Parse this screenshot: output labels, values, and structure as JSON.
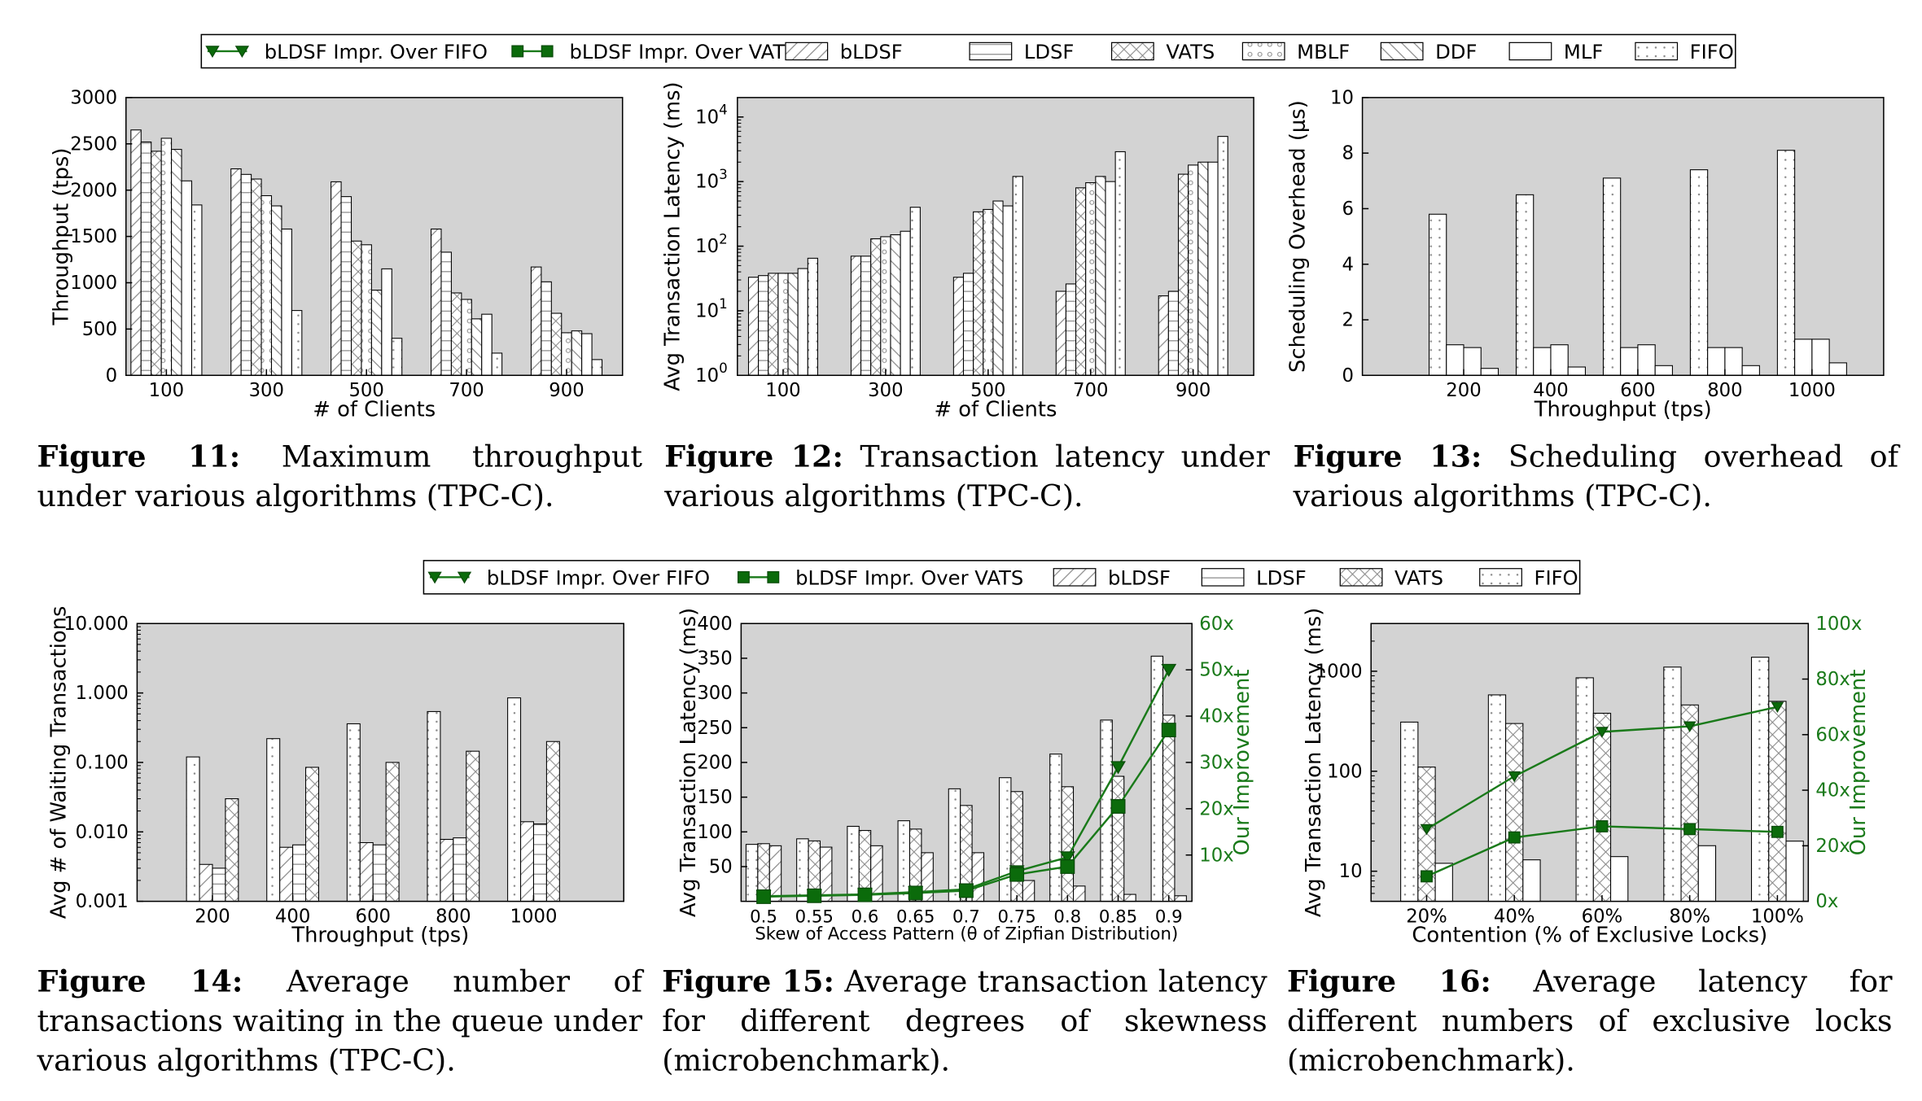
{
  "colors": {
    "plot_bg": "#d3d3d3",
    "bar_fill": "#ffffff",
    "line_green": "#1a7a1a",
    "marker_green": "#0b6b0b"
  },
  "legend_top": {
    "items": [
      {
        "label": "bLDSF Impr. Over FIFO",
        "kind": "line-triangle"
      },
      {
        "label": "bLDSF Impr. Over VATS",
        "kind": "line-square"
      },
      {
        "label": "bLDSF",
        "kind": "pattern-diag"
      },
      {
        "label": "LDSF",
        "kind": "pattern-hlines"
      },
      {
        "label": "VATS",
        "kind": "pattern-cross"
      },
      {
        "label": "MBLF",
        "kind": "pattern-circles"
      },
      {
        "label": "DDF",
        "kind": "pattern-backdiag"
      },
      {
        "label": "MLF",
        "kind": "pattern-none"
      },
      {
        "label": "FIFO",
        "kind": "pattern-dots"
      }
    ]
  },
  "legend_bottom": {
    "items": [
      {
        "label": "bLDSF Impr. Over FIFO",
        "kind": "line-triangle"
      },
      {
        "label": "bLDSF Impr. Over VATS",
        "kind": "line-square"
      },
      {
        "label": "bLDSF",
        "kind": "pattern-diag"
      },
      {
        "label": "LDSF",
        "kind": "pattern-hlines"
      },
      {
        "label": "VATS",
        "kind": "pattern-cross"
      },
      {
        "label": "FIFO",
        "kind": "pattern-dots"
      }
    ]
  },
  "captions": [
    {
      "label": "Figure 11:",
      "text": "Maximum throughput under various algorithms (TPC-C)."
    },
    {
      "label": "Figure 12:",
      "text": "Transaction latency under various algorithms (TPC-C)."
    },
    {
      "label": "Figure 13:",
      "text": "Scheduling overhead of various algorithms (TPC-C)."
    },
    {
      "label": "Figure 14:",
      "text": "Average number of transactions waiting in the queue under various algorithms (TPC-C)."
    },
    {
      "label": "Figure 15:",
      "text": "Average transaction latency for different degrees of skewness (microbenchmark)."
    },
    {
      "label": "Figure 16:",
      "text": "Average latency for different numbers of exclusive locks (microbenchmark)."
    }
  ],
  "chart_data": [
    {
      "type": "bar",
      "ylabel": "Throughput (tps)",
      "xlabel": "# of Clients",
      "categories": [
        "100",
        "300",
        "500",
        "700",
        "900"
      ],
      "yscale": "linear",
      "ylim": [
        0,
        3000
      ],
      "yticks": [
        0,
        500,
        1000,
        1500,
        2000,
        2500,
        3000
      ],
      "ytick_labels": [
        "0",
        "500",
        "1000",
        "1500",
        "2000",
        "2500",
        "3000"
      ],
      "series": [
        {
          "name": "bLDSF",
          "pattern": "diag",
          "values": [
            2650,
            2230,
            2090,
            1580,
            1170
          ]
        },
        {
          "name": "LDSF",
          "pattern": "hlines",
          "values": [
            2520,
            2170,
            1930,
            1330,
            1010
          ]
        },
        {
          "name": "VATS",
          "pattern": "cross",
          "values": [
            2420,
            2120,
            1450,
            890,
            670
          ]
        },
        {
          "name": "MBLF",
          "pattern": "circles",
          "values": [
            2560,
            1940,
            1410,
            820,
            460
          ]
        },
        {
          "name": "DDF",
          "pattern": "backdiag",
          "values": [
            2440,
            1830,
            920,
            610,
            480
          ]
        },
        {
          "name": "MLF",
          "pattern": "none",
          "values": [
            2100,
            1580,
            1150,
            660,
            450
          ]
        },
        {
          "name": "FIFO",
          "pattern": "dots",
          "values": [
            1840,
            700,
            400,
            240,
            170
          ]
        }
      ]
    },
    {
      "type": "bar",
      "ylabel": "Avg Transaction Latency (ms)",
      "xlabel": "# of Clients",
      "categories": [
        "100",
        "300",
        "500",
        "700",
        "900"
      ],
      "yscale": "log",
      "ylim": [
        1,
        20000
      ],
      "yticks": [
        1,
        10,
        100,
        1000,
        10000
      ],
      "ytick_labels": [
        "10^0",
        "10^1",
        "10^2",
        "10^3",
        "10^4"
      ],
      "series": [
        {
          "name": "bLDSF",
          "pattern": "diag",
          "values": [
            33,
            70,
            33,
            20,
            17
          ]
        },
        {
          "name": "LDSF",
          "pattern": "hlines",
          "values": [
            35,
            70,
            38,
            26,
            20
          ]
        },
        {
          "name": "VATS",
          "pattern": "cross",
          "values": [
            38,
            130,
            340,
            800,
            1300
          ]
        },
        {
          "name": "MBLF",
          "pattern": "circles",
          "values": [
            38,
            140,
            370,
            960,
            1800
          ]
        },
        {
          "name": "DDF",
          "pattern": "backdiag",
          "values": [
            38,
            150,
            500,
            1200,
            2000
          ]
        },
        {
          "name": "MLF",
          "pattern": "none",
          "values": [
            45,
            170,
            420,
            1000,
            2000
          ]
        },
        {
          "name": "FIFO",
          "pattern": "dots",
          "values": [
            65,
            400,
            1200,
            2900,
            5000
          ]
        }
      ]
    },
    {
      "type": "bar",
      "ylabel": "Scheduling Overhead (μs)",
      "xlabel": "Throughput (tps)",
      "categories": [
        "200",
        "400",
        "600",
        "800",
        "1000"
      ],
      "yscale": "linear",
      "ylim": [
        0,
        10
      ],
      "yticks": [
        0,
        2,
        4,
        6,
        8,
        10
      ],
      "ytick_labels": [
        "0",
        "2",
        "4",
        "6",
        "8",
        "10"
      ],
      "series": [
        {
          "name": "bLDSF",
          "pattern": "dots",
          "values": [
            5.8,
            6.5,
            7.1,
            7.4,
            8.1
          ]
        },
        {
          "name": "LDSF",
          "pattern": "none",
          "values": [
            1.1,
            1.0,
            1.0,
            1.0,
            1.3
          ]
        },
        {
          "name": "VATS",
          "pattern": "none",
          "values": [
            1.0,
            1.1,
            1.1,
            1.0,
            1.3
          ]
        },
        {
          "name": "MBLF",
          "pattern": "none",
          "values": [
            0.25,
            0.3,
            0.35,
            0.35,
            0.45
          ]
        }
      ]
    },
    {
      "type": "bar",
      "ylabel": "Avg # of Waiting Transactions",
      "xlabel": "Throughput (tps)",
      "categories": [
        "200",
        "400",
        "600",
        "800",
        "1000"
      ],
      "yscale": "log",
      "ylim": [
        0.001,
        10
      ],
      "yticks": [
        0.001,
        0.01,
        0.1,
        1,
        10
      ],
      "ytick_labels": [
        "0.001",
        "0.010",
        "0.100",
        "1.000",
        "10.000"
      ],
      "series": [
        {
          "name": "FIFO",
          "pattern": "dots",
          "values": [
            0.12,
            0.22,
            0.36,
            0.54,
            0.85
          ]
        },
        {
          "name": "bLDSF",
          "pattern": "diag",
          "values": [
            0.0034,
            0.006,
            0.007,
            0.0078,
            0.014
          ]
        },
        {
          "name": "LDSF",
          "pattern": "hlines",
          "values": [
            0.003,
            0.0065,
            0.0065,
            0.0082,
            0.013
          ]
        },
        {
          "name": "VATS",
          "pattern": "cross",
          "values": [
            0.03,
            0.085,
            0.1,
            0.145,
            0.2
          ]
        }
      ]
    },
    {
      "type": "bar",
      "ylabel": "Avg Transaction Latency (ms)",
      "y2label": "Our Improvement",
      "xlabel": "Skew of Access Pattern (θ of Zipfian Distribution)",
      "categories": [
        "0.5",
        "0.55",
        "0.6",
        "0.65",
        "0.7",
        "0.75",
        "0.8",
        "0.85",
        "0.9"
      ],
      "yscale": "linear",
      "ylim": [
        0,
        400
      ],
      "yticks": [
        50,
        100,
        150,
        200,
        250,
        300,
        350,
        400
      ],
      "ytick_labels": [
        "50",
        "100",
        "150",
        "200",
        "250",
        "300",
        "350",
        "400"
      ],
      "y2lim": [
        0,
        60
      ],
      "y2ticks": [
        10,
        20,
        30,
        40,
        50,
        60
      ],
      "y2tick_labels": [
        "10x",
        "20x",
        "30x",
        "40x",
        "50x",
        "60x"
      ],
      "series": [
        {
          "name": "FIFO",
          "pattern": "dots",
          "values": [
            82,
            90,
            108,
            116,
            162,
            178,
            212,
            261,
            353
          ]
        },
        {
          "name": "VATS",
          "pattern": "cross",
          "values": [
            83,
            87,
            102,
            104,
            138,
            158,
            165,
            180,
            268
          ]
        },
        {
          "name": "bLDSF",
          "pattern": "diag",
          "values": [
            80,
            78,
            80,
            70,
            70,
            30,
            22,
            10,
            8
          ]
        }
      ],
      "lines": [
        {
          "name": "bLDSF Impr. Over FIFO",
          "marker": "triangle",
          "values": [
            1.1,
            1.3,
            1.5,
            2.0,
            2.6,
            6.5,
            9.5,
            29,
            50
          ]
        },
        {
          "name": "bLDSF Impr. Over VATS",
          "marker": "square",
          "values": [
            1.0,
            1.2,
            1.4,
            1.8,
            2.3,
            5.8,
            7.5,
            20.5,
            37
          ]
        }
      ]
    },
    {
      "type": "bar",
      "ylabel": "Avg Transaction Latency (ms)",
      "y2label": "Our Improvement",
      "xlabel": "Contention (% of Exclusive Locks)",
      "categories": [
        "20%",
        "40%",
        "60%",
        "80%",
        "100%"
      ],
      "yscale": "log",
      "ylim": [
        5,
        3000
      ],
      "yticks": [
        10,
        100,
        1000
      ],
      "ytick_labels": [
        "10",
        "100",
        "1000"
      ],
      "y2lim": [
        0,
        100
      ],
      "y2ticks": [
        0,
        20,
        40,
        60,
        80,
        100
      ],
      "y2tick_labels": [
        "0x",
        "20x",
        "40x",
        "60x",
        "80x",
        "100x"
      ],
      "series": [
        {
          "name": "FIFO",
          "pattern": "dots",
          "values": [
            310,
            580,
            860,
            1100,
            1380
          ]
        },
        {
          "name": "VATS",
          "pattern": "cross",
          "values": [
            110,
            300,
            380,
            460,
            500
          ]
        },
        {
          "name": "bLDSF",
          "pattern": "none",
          "values": [
            12,
            13,
            14,
            18,
            20
          ]
        }
      ],
      "lines": [
        {
          "name": "bLDSF Impr. Over FIFO",
          "marker": "triangle",
          "values": [
            26,
            45,
            61,
            63,
            70
          ]
        },
        {
          "name": "bLDSF Impr. Over VATS",
          "marker": "square",
          "values": [
            9,
            23,
            27,
            26,
            25
          ]
        }
      ]
    }
  ]
}
